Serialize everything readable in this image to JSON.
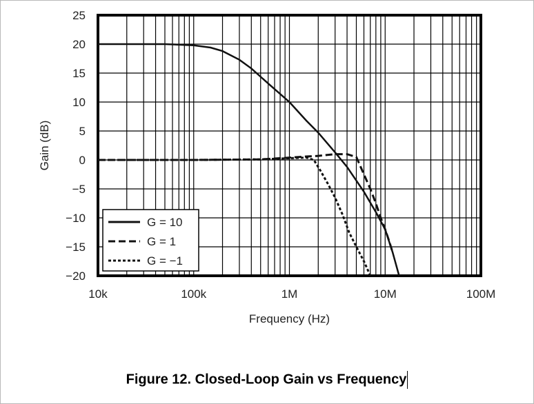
{
  "chart_data": {
    "type": "line",
    "title": "Figure 12. Closed-Loop Gain vs Frequency",
    "xlabel": "Frequency (Hz)",
    "ylabel": "Gain (dB)",
    "xscale": "log",
    "xlim": [
      10000,
      100000000
    ],
    "ylim": [
      -20,
      25
    ],
    "xticks": [
      {
        "v": 10000,
        "label": "10k"
      },
      {
        "v": 100000,
        "label": "100k"
      },
      {
        "v": 1000000,
        "label": "1M"
      },
      {
        "v": 10000000,
        "label": "10M"
      },
      {
        "v": 100000000,
        "label": "100M"
      }
    ],
    "yticks": [
      {
        "v": 25,
        "label": "25"
      },
      {
        "v": 20,
        "label": "20"
      },
      {
        "v": 15,
        "label": "15"
      },
      {
        "v": 10,
        "label": "10"
      },
      {
        "v": 5,
        "label": "5"
      },
      {
        "v": 0,
        "label": "0"
      },
      {
        "v": -5,
        "label": "−5"
      },
      {
        "v": -10,
        "label": "−10"
      },
      {
        "v": -15,
        "label": "−15"
      },
      {
        "v": -20,
        "label": "−20"
      }
    ],
    "grid": true,
    "legend_position": "bottom-left",
    "series": [
      {
        "name": "G = 10",
        "style": "solid",
        "x": [
          10000,
          50000,
          100000,
          150000,
          200000,
          300000,
          400000,
          600000,
          1000000,
          1500000,
          2000000,
          3000000,
          4000000,
          6000000,
          8000000,
          10000000,
          12000000,
          14000000
        ],
        "y": [
          20,
          20,
          19.8,
          19.4,
          18.8,
          17.3,
          15.8,
          13.2,
          10,
          6.8,
          4.7,
          1.3,
          -1.2,
          -5.5,
          -9,
          -12,
          -16,
          -20
        ]
      },
      {
        "name": "G = 1",
        "style": "dashed",
        "x": [
          10000,
          100000,
          500000,
          1000000,
          1500000,
          2000000,
          3000000,
          4000000,
          5000000,
          6000000,
          7000000,
          8000000,
          9000000,
          10000000,
          11000000,
          12000000
        ],
        "y": [
          0,
          0,
          0.1,
          0.4,
          0.6,
          0.7,
          1,
          1,
          0.5,
          -2.5,
          -5,
          -7.5,
          -10,
          -12,
          -14,
          -16
        ]
      },
      {
        "name": "G = −1",
        "style": "dotted",
        "x": [
          10000,
          100000,
          500000,
          1000000,
          1500000,
          1800000,
          2100000,
          2500000,
          3000000,
          3600000,
          4200000,
          5000000,
          6000000,
          7000000
        ],
        "y": [
          0,
          0,
          0.1,
          0.3,
          0.4,
          0,
          -1.8,
          -4,
          -6.5,
          -9.5,
          -12.5,
          -15,
          -17.5,
          -20
        ]
      }
    ]
  }
}
